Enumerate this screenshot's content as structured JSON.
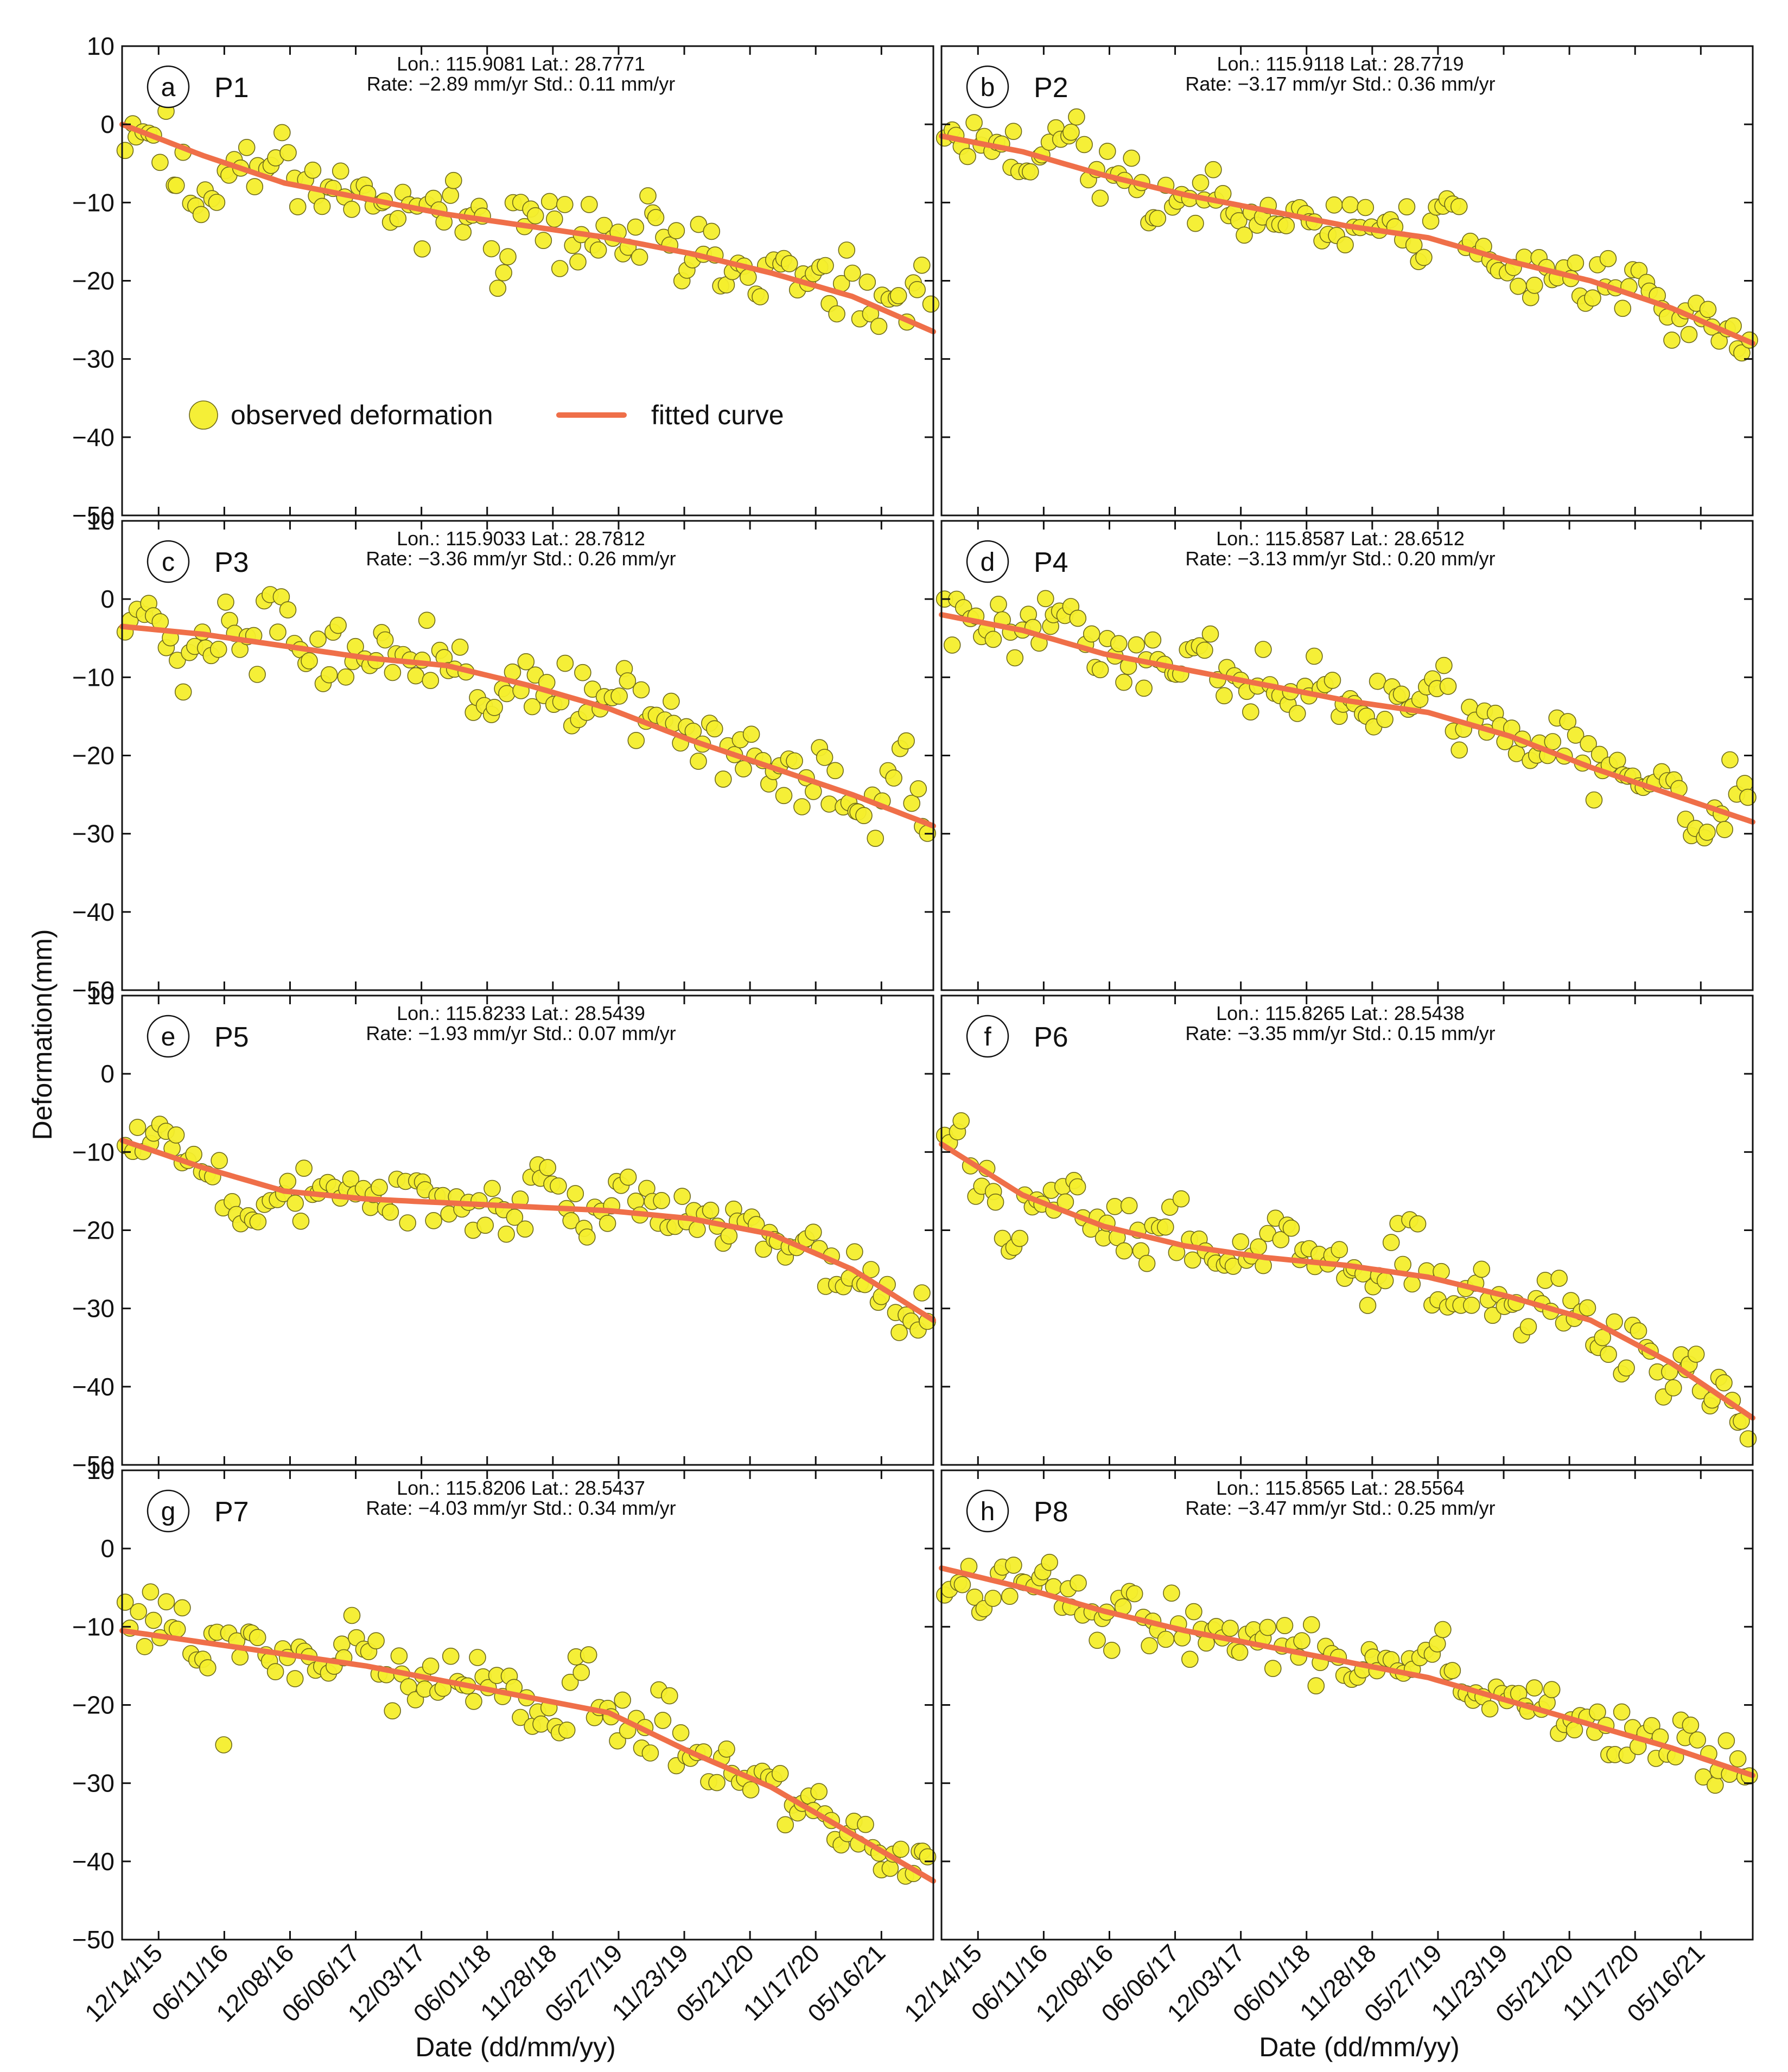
{
  "figure": {
    "xlabel": "Date (dd/mm/yy)",
    "ylabel": "Deformation(mm)",
    "legend": {
      "observed": "observed deformation",
      "fitted": "fitted curve"
    },
    "colors": {
      "observed_fill": "#f4ee2c",
      "observed_edge": "#6e6a1a",
      "fit": "#ef6f49"
    }
  },
  "chart_data": [
    {
      "type": "scatter",
      "letter": "a",
      "name": "P1",
      "lon_lat": "Lon.: 115.9081 Lat.: 28.7771",
      "rate_std": "Rate: −2.89 mm/yr Std.: 0.11 mm/yr",
      "xlim": [
        0,
        100
      ],
      "ylim": [
        -50,
        10
      ],
      "yticks": [
        10,
        0,
        -10,
        -20,
        -30,
        -40,
        -50
      ],
      "xticklabels": [],
      "fit_knots": [
        [
          0,
          0
        ],
        [
          10,
          -4
        ],
        [
          20,
          -7.5
        ],
        [
          30,
          -9.5
        ],
        [
          40,
          -11.5
        ],
        [
          50,
          -13
        ],
        [
          60,
          -14.5
        ],
        [
          70,
          -16.5
        ],
        [
          80,
          -19
        ],
        [
          90,
          -22
        ],
        [
          100,
          -26.5
        ]
      ],
      "anomalies": [
        [
          6,
          12,
          -6
        ],
        [
          18,
          22,
          4
        ],
        [
          33,
          36,
          2
        ],
        [
          45,
          48,
          -6
        ],
        [
          64,
          66,
          3
        ],
        [
          97,
          99,
          6
        ]
      ],
      "scatter_sigma": 2.0,
      "observed": {
        "n": 140,
        "seed": 11
      }
    },
    {
      "type": "scatter",
      "letter": "b",
      "name": "P2",
      "lon_lat": "Lon.: 115.9118 Lat.: 28.7719",
      "rate_std": "Rate: −3.17 mm/yr Std.: 0.36 mm/yr",
      "xlim": [
        0,
        100
      ],
      "ylim": [
        -50,
        10
      ],
      "yticks": [
        10,
        0,
        -10,
        -20,
        -30,
        -40,
        -50
      ],
      "xticklabels": [],
      "fit_knots": [
        [
          0,
          -1.5
        ],
        [
          10,
          -3.5
        ],
        [
          20,
          -6.5
        ],
        [
          30,
          -9
        ],
        [
          40,
          -11
        ],
        [
          50,
          -13
        ],
        [
          60,
          -14.5
        ],
        [
          70,
          -17.5
        ],
        [
          80,
          -20
        ],
        [
          90,
          -23.5
        ],
        [
          100,
          -28
        ]
      ],
      "anomalies": [
        [
          14,
          18,
          4
        ],
        [
          24,
          27,
          -3
        ],
        [
          60,
          64,
          5
        ],
        [
          86,
          88,
          3
        ],
        [
          98,
          100,
          -3
        ]
      ],
      "scatter_sigma": 1.8,
      "observed": {
        "n": 140,
        "seed": 23
      }
    },
    {
      "type": "scatter",
      "letter": "c",
      "name": "P3",
      "lon_lat": "Lon.: 115.9033 Lat.: 28.7812",
      "rate_std": "Rate: −3.36 mm/yr Std.: 0.26 mm/yr",
      "xlim": [
        0,
        100
      ],
      "ylim": [
        -50,
        10
      ],
      "yticks": [
        10,
        0,
        -10,
        -20,
        -30,
        -40,
        -50
      ],
      "xticklabels": [],
      "fit_knots": [
        [
          0,
          -3.5
        ],
        [
          10,
          -4.5
        ],
        [
          20,
          -6
        ],
        [
          30,
          -7.5
        ],
        [
          40,
          -8.5
        ],
        [
          50,
          -11
        ],
        [
          60,
          -14
        ],
        [
          70,
          -18
        ],
        [
          80,
          -21.5
        ],
        [
          90,
          -25
        ],
        [
          100,
          -29
        ]
      ],
      "anomalies": [
        [
          0,
          4,
          3
        ],
        [
          5,
          9,
          -5
        ],
        [
          17,
          21,
          3
        ],
        [
          30,
          34,
          2
        ],
        [
          43,
          46,
          -5
        ],
        [
          60,
          63,
          5
        ],
        [
          94,
          97,
          8
        ]
      ],
      "scatter_sigma": 2.0,
      "observed": {
        "n": 140,
        "seed": 37
      }
    },
    {
      "type": "scatter",
      "letter": "d",
      "name": "P4",
      "lon_lat": "Lon.: 115.8587 Lat.: 28.6512",
      "rate_std": "Rate: −3.13 mm/yr Std.: 0.20 mm/yr",
      "xlim": [
        0,
        100
      ],
      "ylim": [
        -50,
        10
      ],
      "yticks": [
        10,
        0,
        -10,
        -20,
        -30,
        -40,
        -50
      ],
      "xticklabels": [],
      "fit_knots": [
        [
          0,
          -2
        ],
        [
          10,
          -4
        ],
        [
          20,
          -7
        ],
        [
          30,
          -9
        ],
        [
          40,
          -11
        ],
        [
          50,
          -13
        ],
        [
          60,
          -14.5
        ],
        [
          70,
          -17.5
        ],
        [
          80,
          -21.5
        ],
        [
          90,
          -25
        ],
        [
          100,
          -28.5
        ]
      ],
      "anomalies": [
        [
          12,
          18,
          4
        ],
        [
          30,
          34,
          4
        ],
        [
          59,
          63,
          6
        ],
        [
          75,
          80,
          4
        ],
        [
          92,
          95,
          -5
        ],
        [
          97,
          100,
          4
        ]
      ],
      "scatter_sigma": 1.8,
      "observed": {
        "n": 140,
        "seed": 41
      }
    },
    {
      "type": "scatter",
      "letter": "e",
      "name": "P5",
      "lon_lat": "Lon.: 115.8233 Lat.: 28.5439",
      "rate_std": "Rate: −1.93 mm/yr Std.: 0.07 mm/yr",
      "xlim": [
        0,
        100
      ],
      "ylim": [
        -50,
        10
      ],
      "yticks": [
        10,
        0,
        -10,
        -20,
        -30,
        -40,
        -50
      ],
      "xticklabels": [],
      "fit_knots": [
        [
          0,
          -8.5
        ],
        [
          10,
          -12
        ],
        [
          20,
          -15
        ],
        [
          30,
          -16
        ],
        [
          40,
          -16.5
        ],
        [
          50,
          -17
        ],
        [
          60,
          -17.5
        ],
        [
          70,
          -18.5
        ],
        [
          80,
          -20.5
        ],
        [
          90,
          -25
        ],
        [
          100,
          -31.5
        ]
      ],
      "anomalies": [
        [
          0,
          9,
          3
        ],
        [
          12,
          17,
          -6
        ],
        [
          50,
          54,
          4
        ],
        [
          60,
          63,
          4
        ]
      ],
      "scatter_sigma": 1.8,
      "observed": {
        "n": 140,
        "seed": 53
      }
    },
    {
      "type": "scatter",
      "letter": "f",
      "name": "P6",
      "lon_lat": "Lon.: 115.8265 Lat.: 28.5438",
      "rate_std": "Rate: −3.35 mm/yr Std.: 0.15 mm/yr",
      "xlim": [
        0,
        100
      ],
      "ylim": [
        -50,
        10
      ],
      "yticks": [
        10,
        0,
        -10,
        -20,
        -30,
        -40,
        -50
      ],
      "xticklabels": [],
      "fit_knots": [
        [
          0,
          -9
        ],
        [
          10,
          -15.5
        ],
        [
          20,
          -19.5
        ],
        [
          30,
          -22
        ],
        [
          40,
          -23.5
        ],
        [
          50,
          -24.5
        ],
        [
          60,
          -26
        ],
        [
          70,
          -28.5
        ],
        [
          80,
          -31.5
        ],
        [
          90,
          -37
        ],
        [
          100,
          -44
        ]
      ],
      "anomalies": [
        [
          0,
          4,
          4
        ],
        [
          7,
          10,
          -6
        ],
        [
          40,
          44,
          3
        ],
        [
          55,
          60,
          4
        ],
        [
          97,
          100,
          -3
        ]
      ],
      "scatter_sigma": 2.2,
      "observed": {
        "n": 140,
        "seed": 67
      }
    },
    {
      "type": "scatter",
      "letter": "g",
      "name": "P7",
      "lon_lat": "Lon.: 115.8206 Lat.: 28.5437",
      "rate_std": "Rate: −4.03 mm/yr Std.: 0.34 mm/yr",
      "xlim": [
        0,
        100
      ],
      "ylim": [
        -50,
        10
      ],
      "yticks": [
        10,
        0,
        -10,
        -20,
        -30,
        -40,
        -50
      ],
      "xticklabels": [
        "12/14/15",
        "06/11/16",
        "12/08/16",
        "06/06/17",
        "12/03/17",
        "06/01/18",
        "11/28/18",
        "05/27/19",
        "11/23/19",
        "05/21/20",
        "11/17/20",
        "05/16/21"
      ],
      "fit_knots": [
        [
          0,
          -10.5
        ],
        [
          10,
          -12
        ],
        [
          20,
          -13.5
        ],
        [
          30,
          -15
        ],
        [
          40,
          -17
        ],
        [
          50,
          -19
        ],
        [
          60,
          -21
        ],
        [
          70,
          -26
        ],
        [
          80,
          -30.5
        ],
        [
          90,
          -36.5
        ],
        [
          100,
          -42.5
        ]
      ],
      "anomalies": [
        [
          0,
          9,
          3
        ],
        [
          12,
          13,
          -10
        ],
        [
          27,
          31,
          3
        ],
        [
          55,
          60,
          4
        ],
        [
          66,
          68,
          5
        ]
      ],
      "scatter_sigma": 2.0,
      "observed": {
        "n": 140,
        "seed": 79
      }
    },
    {
      "type": "scatter",
      "letter": "h",
      "name": "P8",
      "lon_lat": "Lon.: 115.8565 Lat.: 28.5564",
      "rate_std": "Rate: −3.47 mm/yr Std.: 0.25 mm/yr",
      "xlim": [
        0,
        100
      ],
      "ylim": [
        -50,
        10
      ],
      "yticks": [
        10,
        0,
        -10,
        -20,
        -30,
        -40,
        -50
      ],
      "xticklabels": [
        "12/14/15",
        "06/11/16",
        "12/08/16",
        "06/06/17",
        "12/03/17",
        "06/01/18",
        "11/28/18",
        "05/27/19",
        "11/23/19",
        "05/21/20",
        "11/17/20",
        "05/16/21"
      ],
      "fit_knots": [
        [
          0,
          -2.5
        ],
        [
          10,
          -5
        ],
        [
          20,
          -8
        ],
        [
          30,
          -10.5
        ],
        [
          40,
          -12.5
        ],
        [
          50,
          -14.5
        ],
        [
          60,
          -16.5
        ],
        [
          70,
          -19.5
        ],
        [
          80,
          -22.5
        ],
        [
          90,
          -25.5
        ],
        [
          100,
          -29
        ]
      ],
      "anomalies": [
        [
          10,
          14,
          4
        ],
        [
          17,
          21,
          -3
        ],
        [
          57,
          62,
          4
        ],
        [
          90,
          93,
          3
        ]
      ],
      "scatter_sigma": 1.8,
      "observed": {
        "n": 140,
        "seed": 97
      }
    }
  ]
}
